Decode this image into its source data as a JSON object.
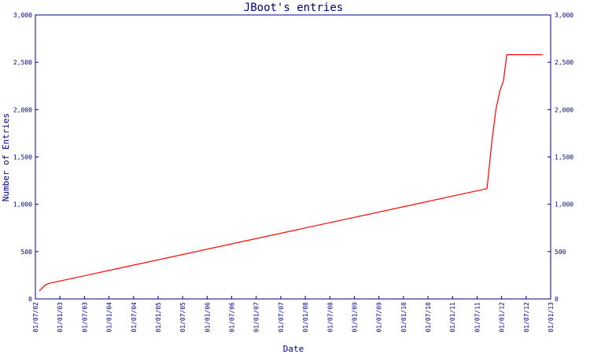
{
  "chart_data": {
    "type": "line",
    "title": "JBoot's entries",
    "xlabel": "Date",
    "ylabel": "Number of Entries",
    "ylim": [
      0,
      3000
    ],
    "yticks": [
      0,
      500,
      1000,
      1500,
      2000,
      2500,
      3000
    ],
    "ytick_labels": [
      "0",
      "500",
      "1,000",
      "1,500",
      "2,000",
      "2,500",
      "3,000"
    ],
    "xlim": [
      "2002-07-01",
      "2013-01-01"
    ],
    "xtick_labels": [
      "01/07/02",
      "01/01/03",
      "01/07/03",
      "01/01/04",
      "01/07/04",
      "01/01/05",
      "01/07/05",
      "01/01/06",
      "01/07/06",
      "01/01/07",
      "01/07/07",
      "01/01/08",
      "01/07/08",
      "01/01/09",
      "01/07/09",
      "01/01/10",
      "01/07/10",
      "01/01/11",
      "01/07/11",
      "01/01/12",
      "01/07/12",
      "01/01/13"
    ],
    "grid": false,
    "series": [
      {
        "color": "#ff0000",
        "points": [
          [
            "2002-07-31",
            85
          ],
          [
            "2002-09-15",
            150
          ],
          [
            "2002-10-15",
            165
          ],
          [
            "2011-09-15",
            1165
          ],
          [
            "2011-10-20",
            1650
          ],
          [
            "2011-11-20",
            2000
          ],
          [
            "2011-12-20",
            2200
          ],
          [
            "2012-01-15",
            2300
          ],
          [
            "2012-02-10",
            2580
          ],
          [
            "2012-11-01",
            2580
          ]
        ]
      }
    ]
  }
}
